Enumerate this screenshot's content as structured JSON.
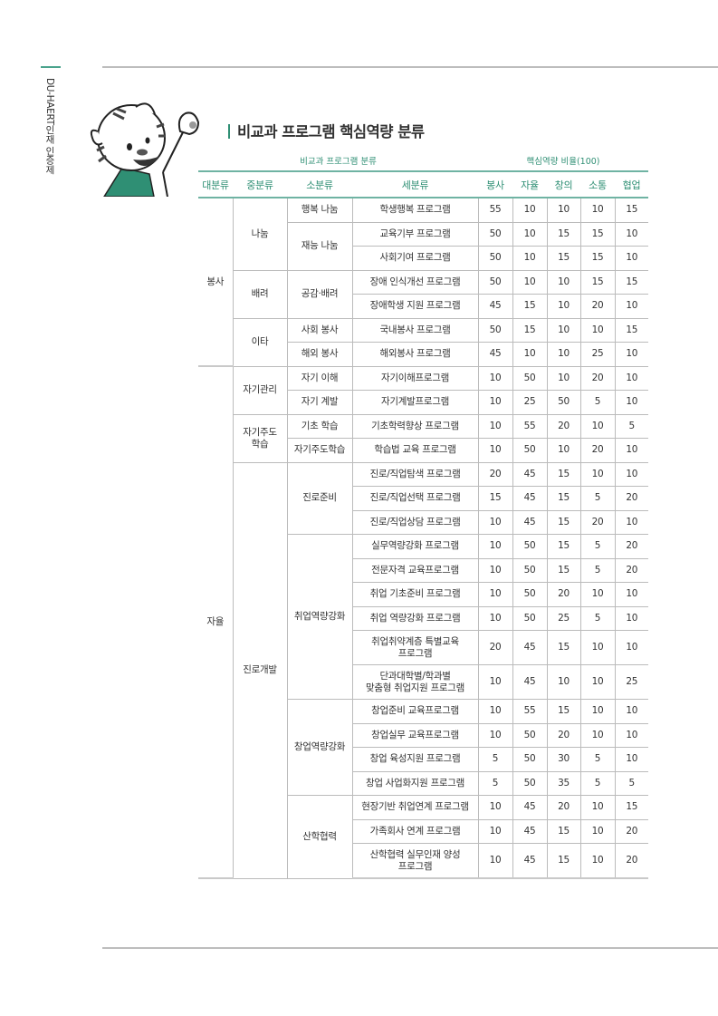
{
  "side_label": "DU-HAERT인재 인증제",
  "title": "비교과 프로그램 핵심역량 분류",
  "header": {
    "group_left": "비교과 프로그램 분류",
    "group_right": "핵심역량 비율(100)",
    "columns": [
      "대분류",
      "중분류",
      "소분류",
      "세분류",
      "봉사",
      "자율",
      "창의",
      "소통",
      "협업"
    ]
  },
  "colors": {
    "accent": "#2f8f74",
    "rule": "#6fb3a3"
  },
  "categories": [
    {
      "name": "봉사",
      "groups": [
        {
          "name": "나눔",
          "subgroups": [
            {
              "name": "행복 나눔",
              "programs": [
                {
                  "name": "학생행복 프로그램",
                  "scores": [
                    55,
                    10,
                    10,
                    10,
                    15
                  ]
                }
              ]
            },
            {
              "name": "재능 나눔",
              "programs": [
                {
                  "name": "교육기부 프로그램",
                  "scores": [
                    50,
                    10,
                    15,
                    15,
                    10
                  ]
                },
                {
                  "name": "사회기여 프로그램",
                  "scores": [
                    50,
                    10,
                    15,
                    15,
                    10
                  ]
                }
              ]
            }
          ]
        },
        {
          "name": "배려",
          "subgroups": [
            {
              "name": "공감·배려",
              "programs": [
                {
                  "name": "장애 인식개선 프로그램",
                  "scores": [
                    50,
                    10,
                    10,
                    15,
                    15
                  ]
                },
                {
                  "name": "장애학생 지원 프로그램",
                  "scores": [
                    45,
                    15,
                    10,
                    20,
                    10
                  ]
                }
              ]
            }
          ]
        },
        {
          "name": "이타",
          "subgroups": [
            {
              "name": "사회 봉사",
              "programs": [
                {
                  "name": "국내봉사 프로그램",
                  "scores": [
                    50,
                    15,
                    10,
                    10,
                    15
                  ]
                }
              ]
            },
            {
              "name": "해외 봉사",
              "programs": [
                {
                  "name": "해외봉사 프로그램",
                  "scores": [
                    45,
                    10,
                    10,
                    25,
                    10
                  ]
                }
              ]
            }
          ]
        }
      ]
    },
    {
      "name": "자율",
      "groups": [
        {
          "name": "자기관리",
          "subgroups": [
            {
              "name": "자기 이해",
              "programs": [
                {
                  "name": "자기이해프로그램",
                  "scores": [
                    10,
                    50,
                    10,
                    20,
                    10
                  ]
                }
              ]
            },
            {
              "name": "자기 계발",
              "programs": [
                {
                  "name": "자기계발프로그램",
                  "scores": [
                    10,
                    25,
                    50,
                    5,
                    10
                  ]
                }
              ]
            }
          ]
        },
        {
          "name": "자기주도\n학습",
          "subgroups": [
            {
              "name": "기초 학습",
              "programs": [
                {
                  "name": "기초학력향상 프로그램",
                  "scores": [
                    10,
                    55,
                    20,
                    10,
                    5
                  ]
                }
              ]
            },
            {
              "name": "자기주도학습",
              "programs": [
                {
                  "name": "학습법 교육 프로그램",
                  "scores": [
                    10,
                    50,
                    10,
                    20,
                    10
                  ]
                }
              ]
            }
          ]
        },
        {
          "name": "진로개발",
          "subgroups": [
            {
              "name": "진로준비",
              "programs": [
                {
                  "name": "진로/직업탐색 프로그램",
                  "scores": [
                    20,
                    45,
                    15,
                    10,
                    10
                  ]
                },
                {
                  "name": "진로/직업선택 프로그램",
                  "scores": [
                    15,
                    45,
                    15,
                    5,
                    20
                  ]
                },
                {
                  "name": "진로/직업상담 프로그램",
                  "scores": [
                    10,
                    45,
                    15,
                    20,
                    10
                  ]
                }
              ]
            },
            {
              "name": "취업역량강화",
              "programs": [
                {
                  "name": "실무역량강화 프로그램",
                  "scores": [
                    10,
                    50,
                    15,
                    5,
                    20
                  ]
                },
                {
                  "name": "전문자격 교육프로그램",
                  "scores": [
                    10,
                    50,
                    15,
                    5,
                    20
                  ]
                },
                {
                  "name": "취업 기초준비 프로그램",
                  "scores": [
                    10,
                    50,
                    20,
                    10,
                    10
                  ]
                },
                {
                  "name": "취업 역량강화 프로그램",
                  "scores": [
                    10,
                    50,
                    25,
                    5,
                    10
                  ]
                },
                {
                  "name": "취업취약계층 특별교육\n프로그램",
                  "scores": [
                    20,
                    45,
                    15,
                    10,
                    10
                  ]
                },
                {
                  "name": "단과대학별/학과별\n맞춤형 취업지원 프로그램",
                  "scores": [
                    10,
                    45,
                    10,
                    10,
                    25
                  ]
                }
              ]
            },
            {
              "name": "창업역량강화",
              "programs": [
                {
                  "name": "창업준비 교육프로그램",
                  "scores": [
                    10,
                    55,
                    15,
                    10,
                    10
                  ]
                },
                {
                  "name": "창업실무 교육프로그램",
                  "scores": [
                    10,
                    50,
                    20,
                    10,
                    10
                  ]
                },
                {
                  "name": "창업 육성지원 프로그램",
                  "scores": [
                    5,
                    50,
                    30,
                    5,
                    10
                  ]
                },
                {
                  "name": "창업 사업화지원 프로그램",
                  "scores": [
                    5,
                    50,
                    35,
                    5,
                    5
                  ]
                }
              ]
            },
            {
              "name": "산학협력",
              "programs": [
                {
                  "name": "현장기반 취업연계 프로그램",
                  "scores": [
                    10,
                    45,
                    20,
                    10,
                    15
                  ]
                },
                {
                  "name": "가족회사 연계 프로그램",
                  "scores": [
                    10,
                    45,
                    15,
                    10,
                    20
                  ]
                },
                {
                  "name": "산학협력 실무인재 양성\n프로그램",
                  "scores": [
                    10,
                    45,
                    15,
                    10,
                    20
                  ]
                }
              ]
            }
          ]
        }
      ]
    }
  ]
}
